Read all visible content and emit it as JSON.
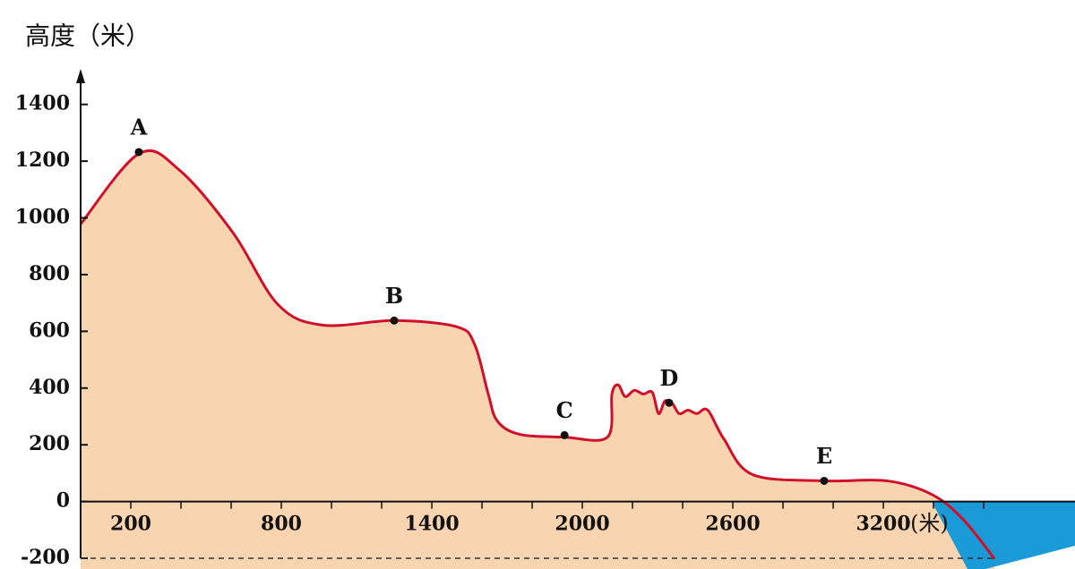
{
  "chart_data": {
    "type": "area",
    "y_label": "高度（米）",
    "x_label": "(米)",
    "x": [
      0,
      232,
      393,
      607,
      786,
      964,
      1250,
      1500,
      1571,
      1625,
      1661,
      1750,
      1929,
      2100,
      2118,
      2143,
      2171,
      2207,
      2243,
      2279,
      2304,
      2329,
      2357,
      2386,
      2421,
      2457,
      2500,
      2564,
      2679,
      2964,
      3214,
      3393,
      3518,
      3643
    ],
    "values": [
      978,
      1226,
      1169,
      948,
      695,
      622,
      638,
      616,
      553,
      379,
      284,
      237,
      227,
      227,
      379,
      411,
      370,
      392,
      379,
      385,
      310,
      354,
      348,
      310,
      322,
      310,
      322,
      221,
      95,
      73,
      73,
      25,
      -63,
      -202
    ],
    "color": "#d0102a",
    "fill": "#f9d4b0",
    "points": [
      {
        "label": "A",
        "x": 232,
        "y": 1232
      },
      {
        "label": "B",
        "x": 1250,
        "y": 638
      },
      {
        "label": "C",
        "x": 1929,
        "y": 234
      },
      {
        "label": "D",
        "x": 2346,
        "y": 348
      },
      {
        "label": "E",
        "x": 2964,
        "y": 73
      }
    ],
    "xlim": [
      0,
      3964
    ],
    "ylim": [
      -200,
      1500
    ],
    "xticks": [
      200,
      800,
      1400,
      2000,
      2600,
      3200
    ],
    "x_minor_ticks": [
      0,
      200,
      400,
      600,
      800,
      1000,
      1200,
      1400,
      1600,
      1800,
      2000,
      2200,
      2400,
      2600,
      2800,
      3000,
      3200,
      3400,
      3600
    ],
    "yticks": [
      -200,
      0,
      200,
      400,
      600,
      800,
      1000,
      1200,
      1400
    ]
  }
}
